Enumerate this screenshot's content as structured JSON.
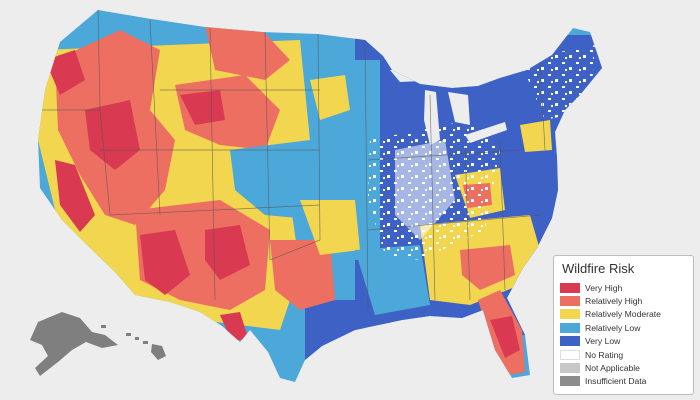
{
  "map": {
    "subject": "Wildfire risk by county, United States",
    "colors": {
      "background": "#ededed",
      "state_borders": "#555555",
      "alaska_hawaii": "#7f7f7f"
    }
  },
  "legend": {
    "title": "Wildfire Risk",
    "items": [
      {
        "label": "Very High",
        "color": "#d93a52"
      },
      {
        "label": "Relatively High",
        "color": "#ec6f62"
      },
      {
        "label": "Relatively Moderate",
        "color": "#f2d64f"
      },
      {
        "label": "Relatively Low",
        "color": "#4ba8d9"
      },
      {
        "label": "Very Low",
        "color": "#3d61c5"
      },
      {
        "label": "No Rating",
        "color": "#ffffff"
      },
      {
        "label": "Not Applicable",
        "color": "#c8c8c8"
      },
      {
        "label": "Insufficient Data",
        "color": "#8c8c8c"
      }
    ]
  }
}
